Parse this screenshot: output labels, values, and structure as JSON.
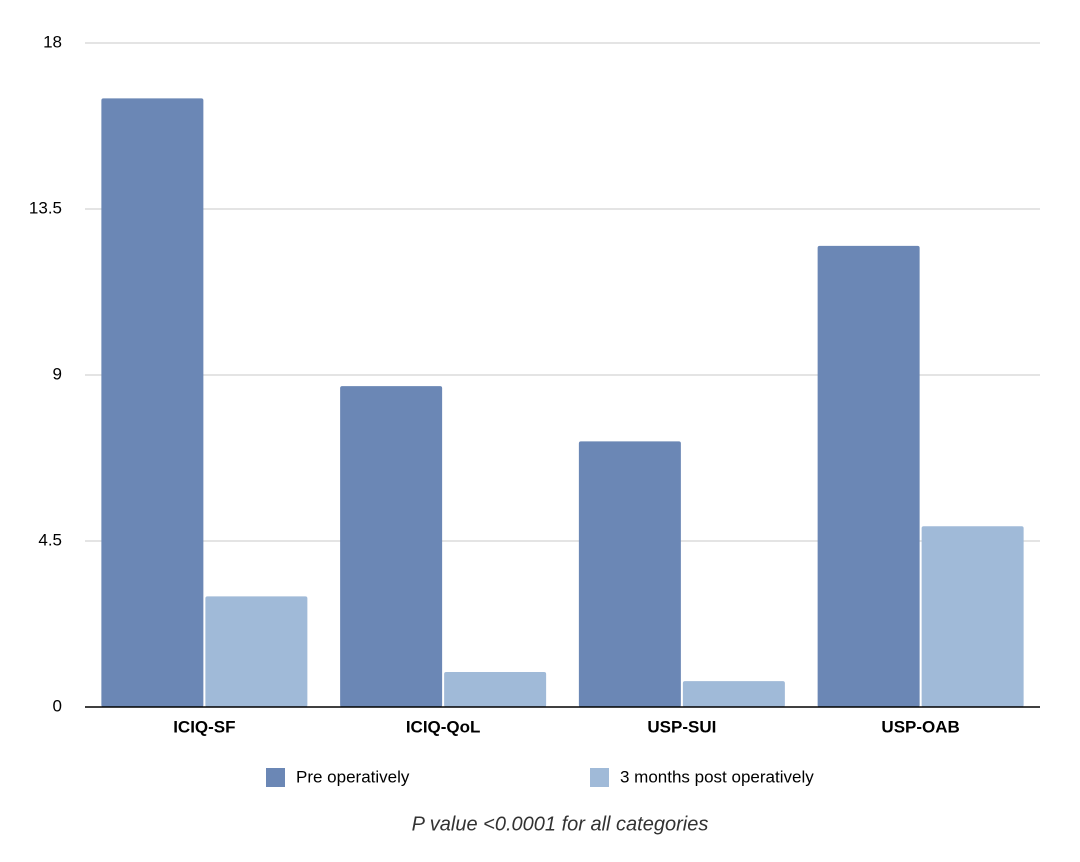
{
  "chart_data": {
    "type": "bar",
    "categories": [
      "ICIQ-SF",
      "ICIQ-QoL",
      "USP-SUI",
      "USP-OAB"
    ],
    "series": [
      {
        "name": "Pre operatively",
        "color": "#6b87b5",
        "values": [
          16.5,
          8.7,
          7.2,
          12.5
        ]
      },
      {
        "name": "3 months post operatively",
        "color": "#a0bad8",
        "values": [
          3.0,
          0.95,
          0.7,
          4.9
        ]
      }
    ],
    "ylim": [
      0,
      18
    ],
    "yticks": [
      0,
      4.5,
      9,
      13.5,
      18
    ],
    "grid": true,
    "caption": "P value <0.0001 for all categories"
  }
}
